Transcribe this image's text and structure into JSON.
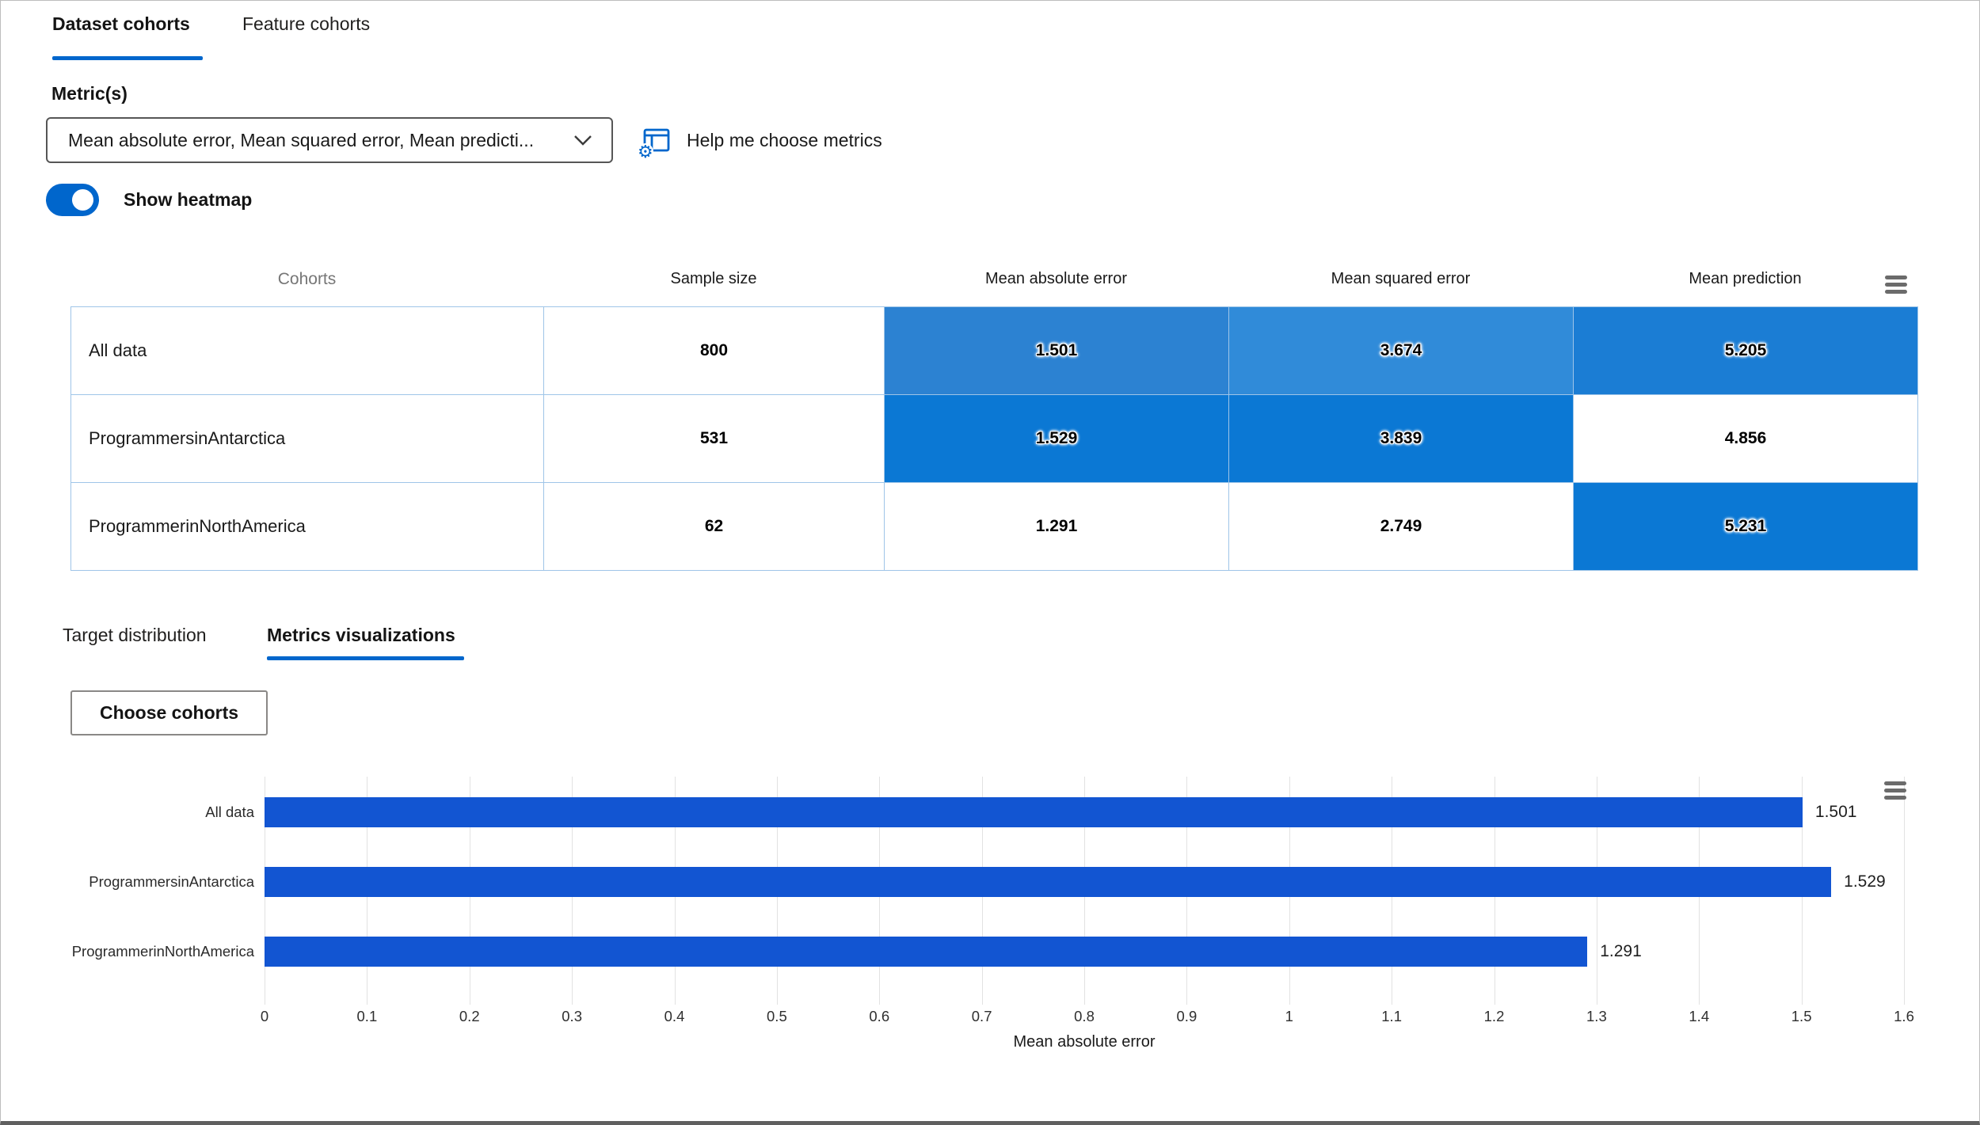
{
  "colors": {
    "accent": "#0066cc",
    "heat_strong": "#0b78d4",
    "bar_blue": "#1255d2",
    "cell_border": "#9fc5e8"
  },
  "tabs": [
    {
      "label": "Dataset cohorts",
      "active": true
    },
    {
      "label": "Feature cohorts",
      "active": false
    }
  ],
  "metrics_section": {
    "label": "Metric(s)",
    "selected_value": "Mean absolute error, Mean squared error, Mean predicti...",
    "help_link": "Help me choose metrics"
  },
  "heatmap_toggle": {
    "label": "Show heatmap",
    "enabled": true
  },
  "table": {
    "headers": [
      "Cohorts",
      "Sample size",
      "Mean absolute error",
      "Mean squared error",
      "Mean prediction"
    ],
    "rows": [
      {
        "cohort": "All data",
        "sample_size": "800",
        "cells": [
          {
            "value": "1.501",
            "bg": "#2c82d2",
            "heat": true
          },
          {
            "value": "3.674",
            "bg": "#308bd9",
            "heat": true
          },
          {
            "value": "5.205",
            "bg": "#1b7dd4",
            "heat": true
          }
        ]
      },
      {
        "cohort": "ProgrammersinAntarctica",
        "sample_size": "531",
        "cells": [
          {
            "value": "1.529",
            "bg": "#0b78d4",
            "heat": true
          },
          {
            "value": "3.839",
            "bg": "#0b78d4",
            "heat": true
          },
          {
            "value": "4.856",
            "bg": "#ffffff",
            "heat": false
          }
        ]
      },
      {
        "cohort": "ProgrammerinNorthAmerica",
        "sample_size": "62",
        "cells": [
          {
            "value": "1.291",
            "bg": "#ffffff",
            "heat": false
          },
          {
            "value": "2.749",
            "bg": "#ffffff",
            "heat": false
          },
          {
            "value": "5.231",
            "bg": "#0b78d4",
            "heat": true
          }
        ]
      }
    ]
  },
  "sub_tabs": [
    {
      "label": "Target distribution",
      "active": false
    },
    {
      "label": "Metrics visualizations",
      "active": true
    }
  ],
  "choose_cohorts_button": {
    "label": "Choose cohorts"
  },
  "chart_data": {
    "type": "bar",
    "orientation": "horizontal",
    "categories": [
      "All data",
      "ProgrammersinAntarctica",
      "ProgrammerinNorthAmerica"
    ],
    "values": [
      1.501,
      1.529,
      1.291
    ],
    "value_labels": [
      "1.501",
      "1.529",
      "1.291"
    ],
    "xlabel": "Mean absolute error",
    "ylabel": "",
    "xlim": [
      0,
      1.6
    ],
    "xticks": [
      {
        "v": 0,
        "label": "0"
      },
      {
        "v": 0.1,
        "label": "0.1"
      },
      {
        "v": 0.2,
        "label": "0.2"
      },
      {
        "v": 0.3,
        "label": "0.3"
      },
      {
        "v": 0.4,
        "label": "0.4"
      },
      {
        "v": 0.5,
        "label": "0.5"
      },
      {
        "v": 0.6,
        "label": "0.6"
      },
      {
        "v": 0.7,
        "label": "0.7"
      },
      {
        "v": 0.8,
        "label": "0.8"
      },
      {
        "v": 0.9,
        "label": "0.9"
      },
      {
        "v": 1,
        "label": "1"
      },
      {
        "v": 1.1,
        "label": "1.1"
      },
      {
        "v": 1.2,
        "label": "1.2"
      },
      {
        "v": 1.3,
        "label": "1.3"
      },
      {
        "v": 1.4,
        "label": "1.4"
      },
      {
        "v": 1.5,
        "label": "1.5"
      },
      {
        "v": 1.6,
        "label": "1.6"
      }
    ],
    "grid": true,
    "legend": "none",
    "bar_color": "#1255d2"
  }
}
